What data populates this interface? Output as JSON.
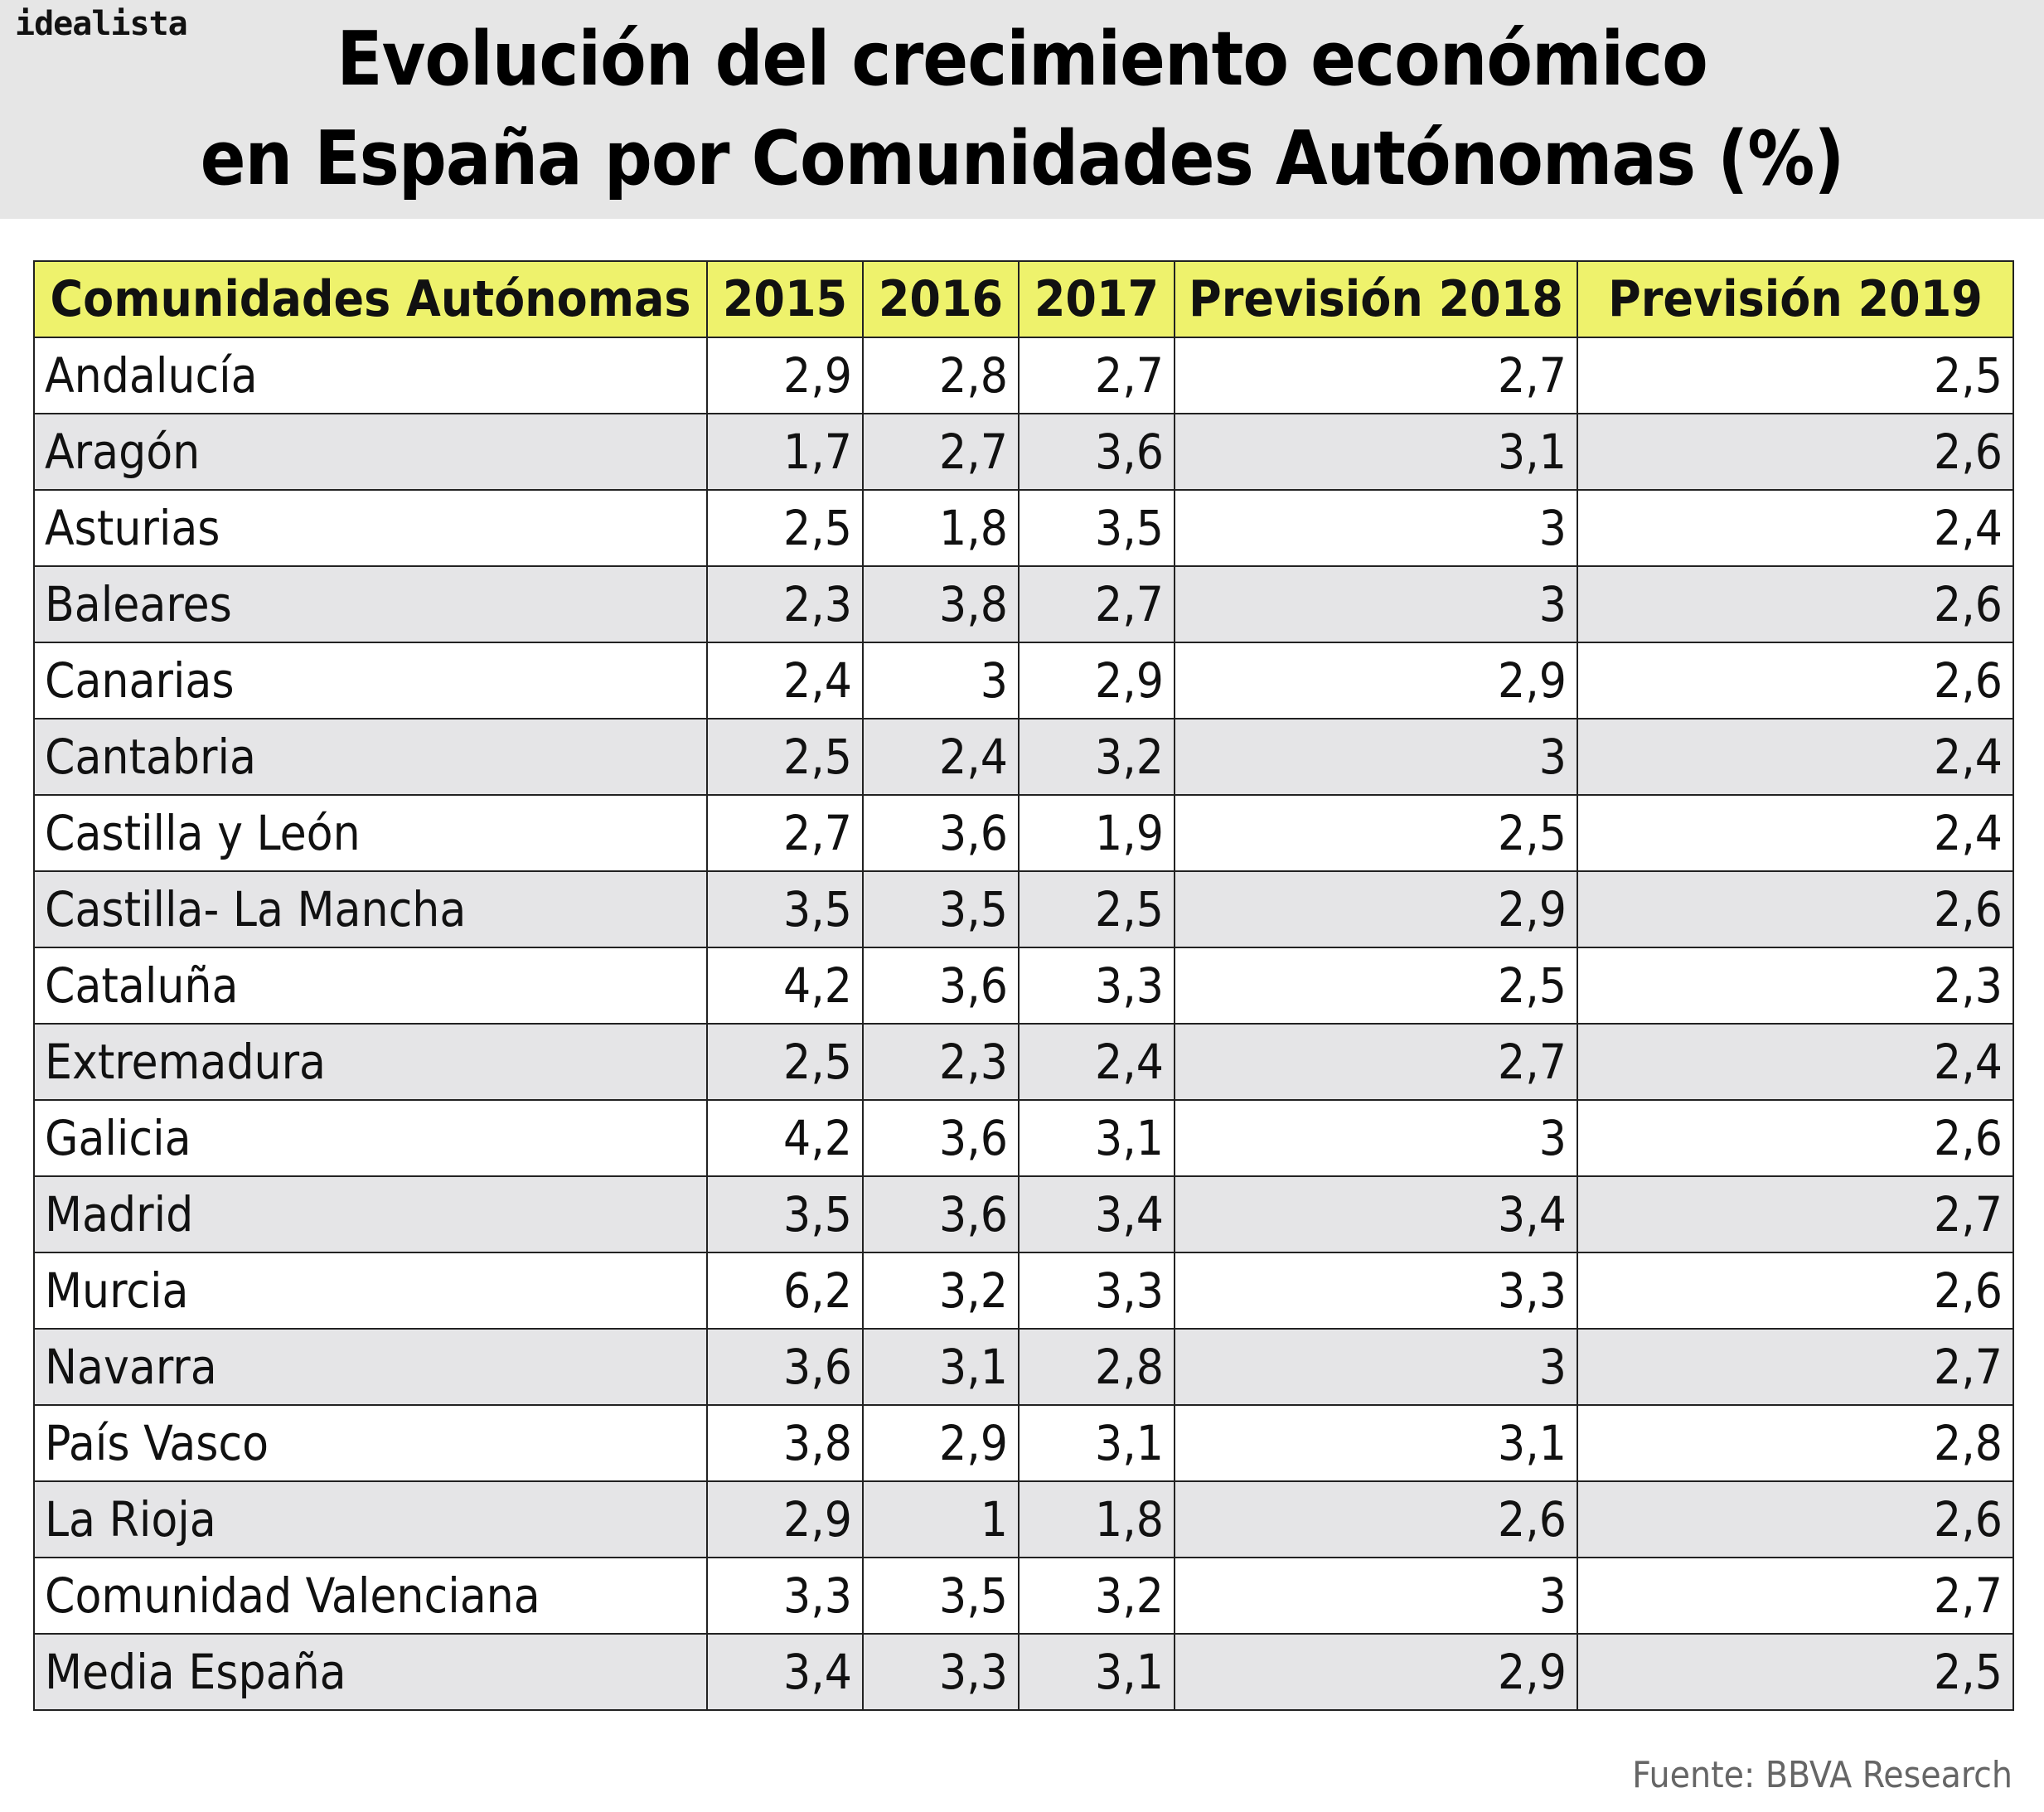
{
  "brand": "idealista",
  "title_lines": [
    "Evolución del crecimiento económico",
    "en España por Comunidades Autónomas (%)"
  ],
  "source": "Fuente: BBVA Research",
  "colors": {
    "header_bg": "#e6e6e6",
    "table_header": "#eef26c",
    "row_alt": "#e5e5e7"
  },
  "chart_data": {
    "type": "table",
    "title": "Evolución del crecimiento económico en España por Comunidades Autónomas (%)",
    "columns": [
      "Comunidades Autónomas",
      "2015",
      "2016",
      "2017",
      "Previsión 2018",
      "Previsión 2019"
    ],
    "rows": [
      {
        "name": "Andalucía",
        "values": [
          "2,9",
          "2,8",
          "2,7",
          "2,7",
          "2,5"
        ]
      },
      {
        "name": "Aragón",
        "values": [
          "1,7",
          "2,7",
          "3,6",
          "3,1",
          "2,6"
        ]
      },
      {
        "name": "Asturias",
        "values": [
          "2,5",
          "1,8",
          "3,5",
          "3",
          "2,4"
        ]
      },
      {
        "name": "Baleares",
        "values": [
          "2,3",
          "3,8",
          "2,7",
          "3",
          "2,6"
        ]
      },
      {
        "name": "Canarias",
        "values": [
          "2,4",
          "3",
          "2,9",
          "2,9",
          "2,6"
        ]
      },
      {
        "name": "Cantabria",
        "values": [
          "2,5",
          "2,4",
          "3,2",
          "3",
          "2,4"
        ]
      },
      {
        "name": "Castilla y León",
        "values": [
          "2,7",
          "3,6",
          "1,9",
          "2,5",
          "2,4"
        ]
      },
      {
        "name": "Castilla- La Mancha",
        "values": [
          "3,5",
          "3,5",
          "2,5",
          "2,9",
          "2,6"
        ]
      },
      {
        "name": "Cataluña",
        "values": [
          "4,2",
          "3,6",
          "3,3",
          "2,5",
          "2,3"
        ]
      },
      {
        "name": "Extremadura",
        "values": [
          "2,5",
          "2,3",
          "2,4",
          "2,7",
          "2,4"
        ]
      },
      {
        "name": "Galicia",
        "values": [
          "4,2",
          "3,6",
          "3,1",
          "3",
          "2,6"
        ]
      },
      {
        "name": "Madrid",
        "values": [
          "3,5",
          "3,6",
          "3,4",
          "3,4",
          "2,7"
        ]
      },
      {
        "name": "Murcia",
        "values": [
          "6,2",
          "3,2",
          "3,3",
          "3,3",
          "2,6"
        ]
      },
      {
        "name": "Navarra",
        "values": [
          "3,6",
          "3,1",
          "2,8",
          "3",
          "2,7"
        ]
      },
      {
        "name": "País Vasco",
        "values": [
          "3,8",
          "2,9",
          "3,1",
          "3,1",
          "2,8"
        ]
      },
      {
        "name": "La Rioja",
        "values": [
          "2,9",
          "1",
          "1,8",
          "2,6",
          "2,6"
        ]
      },
      {
        "name": "Comunidad Valenciana",
        "values": [
          "3,3",
          "3,5",
          "3,2",
          "3",
          "2,7"
        ]
      },
      {
        "name": "Media España",
        "values": [
          "3,4",
          "3,3",
          "3,1",
          "2,9",
          "2,5"
        ]
      }
    ]
  }
}
